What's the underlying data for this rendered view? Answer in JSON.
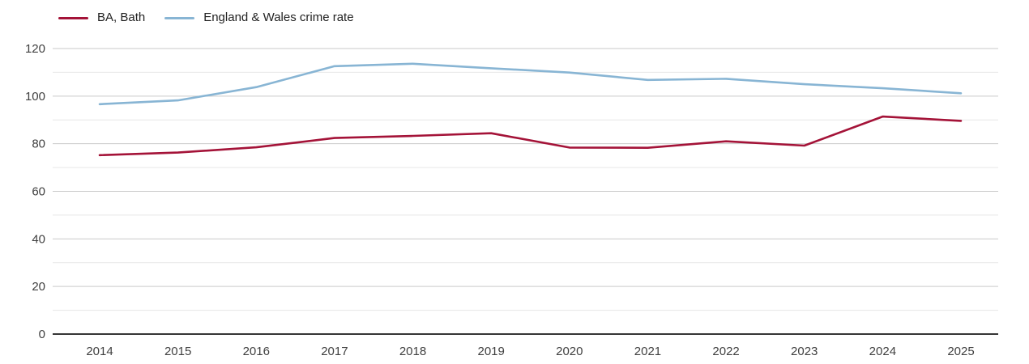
{
  "chart_data": {
    "type": "line",
    "x": [
      "2014",
      "2015",
      "2016",
      "2017",
      "2018",
      "2019",
      "2020",
      "2021",
      "2022",
      "2023",
      "2024",
      "2025"
    ],
    "series": [
      {
        "name": "BA, Bath",
        "color": "#a41338",
        "values": [
          75.2,
          76.3,
          78.5,
          82.4,
          83.3,
          84.4,
          78.4,
          78.3,
          81.0,
          79.2,
          91.4,
          89.6
        ]
      },
      {
        "name": "England & Wales crime rate",
        "color": "#88b5d4",
        "values": [
          96.6,
          98.2,
          103.8,
          112.6,
          113.6,
          111.7,
          109.9,
          106.8,
          107.3,
          105.0,
          103.3,
          101.2
        ]
      }
    ],
    "ylim": [
      0,
      120
    ],
    "yticks": [
      0,
      20,
      40,
      60,
      80,
      100,
      120
    ],
    "minor_yticks": [
      10,
      30,
      50,
      70,
      90,
      110
    ],
    "grid": "horizontal",
    "legend_position": "top-left",
    "title": "",
    "xlabel": "",
    "ylabel": ""
  },
  "colors": {
    "major_gridline": "#c9c9c9",
    "minor_gridline": "#e7e7e7",
    "axis_line": "#1a1a1a",
    "tick_label": "#404040",
    "background": "#ffffff"
  }
}
